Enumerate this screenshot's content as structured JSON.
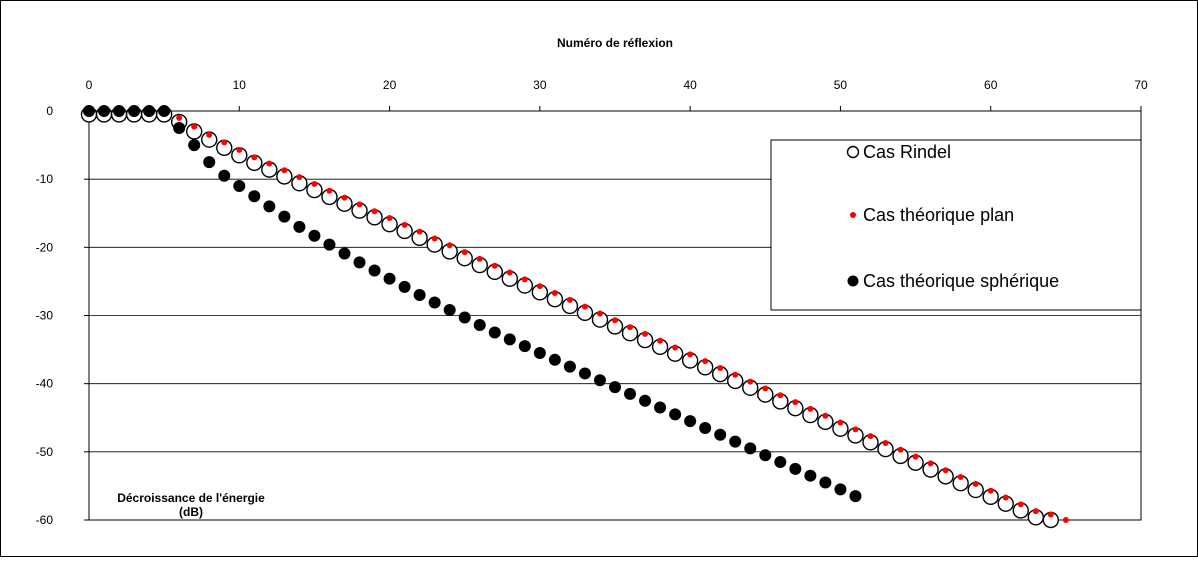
{
  "chart_data": {
    "type": "scatter",
    "title": "",
    "xlabel": "Numéro de réflexion",
    "ylabel_lines": [
      "Décroissance de l'énergie",
      "(dB)"
    ],
    "xlim": [
      0,
      70
    ],
    "ylim": [
      -60,
      0
    ],
    "x_ticks": [
      0,
      10,
      20,
      30,
      40,
      50,
      60,
      70
    ],
    "y_ticks": [
      0,
      -10,
      -20,
      -30,
      -40,
      -50,
      -60
    ],
    "x_axis_position": "top",
    "grid": "horizontal",
    "legend_position": "top-right",
    "series": [
      {
        "name": "Cas Rindel",
        "marker": "open-circle-large",
        "x": [
          0,
          1,
          2,
          3,
          4,
          5,
          6,
          7,
          8,
          9,
          10,
          11,
          12,
          13,
          14,
          15,
          16,
          17,
          18,
          19,
          20,
          21,
          22,
          23,
          24,
          25,
          26,
          27,
          28,
          29,
          30,
          31,
          32,
          33,
          34,
          35,
          36,
          37,
          38,
          39,
          40,
          41,
          42,
          43,
          44,
          45,
          46,
          47,
          48,
          49,
          50,
          51,
          52,
          53,
          54,
          55,
          56,
          57,
          58,
          59,
          60,
          61,
          62,
          63,
          64
        ],
        "y": [
          -0.5,
          -0.5,
          -0.5,
          -0.5,
          -0.5,
          -0.5,
          -1.6,
          -3.0,
          -4.2,
          -5.4,
          -6.5,
          -7.6,
          -8.6,
          -9.6,
          -10.6,
          -11.6,
          -12.6,
          -13.6,
          -14.6,
          -15.6,
          -16.6,
          -17.6,
          -18.6,
          -19.6,
          -20.6,
          -21.6,
          -22.6,
          -23.6,
          -24.6,
          -25.6,
          -26.6,
          -27.6,
          -28.6,
          -29.6,
          -30.6,
          -31.6,
          -32.6,
          -33.6,
          -34.6,
          -35.6,
          -36.6,
          -37.6,
          -38.6,
          -39.6,
          -40.6,
          -41.6,
          -42.6,
          -43.6,
          -44.6,
          -45.6,
          -46.6,
          -47.6,
          -48.6,
          -49.6,
          -50.6,
          -51.6,
          -52.6,
          -53.6,
          -54.6,
          -55.6,
          -56.6,
          -57.6,
          -58.6,
          -59.6,
          -60.0
        ]
      },
      {
        "name": "Cas théorique plan",
        "marker": "small-red-dot",
        "color": "#ff0000",
        "x": [
          6,
          7,
          8,
          9,
          10,
          11,
          12,
          13,
          14,
          15,
          16,
          17,
          18,
          19,
          20,
          21,
          22,
          23,
          24,
          25,
          26,
          27,
          28,
          29,
          30,
          31,
          32,
          33,
          34,
          35,
          36,
          37,
          38,
          39,
          40,
          41,
          42,
          43,
          44,
          45,
          46,
          47,
          48,
          49,
          50,
          51,
          52,
          53,
          54,
          55,
          56,
          57,
          58,
          59,
          60,
          61,
          62,
          63,
          64,
          65
        ],
        "y": [
          -1.0,
          -2.3,
          -3.5,
          -4.6,
          -5.7,
          -6.8,
          -7.7,
          -8.7,
          -9.7,
          -10.7,
          -11.7,
          -12.7,
          -13.7,
          -14.7,
          -15.7,
          -16.7,
          -17.7,
          -18.7,
          -19.7,
          -20.7,
          -21.7,
          -22.7,
          -23.7,
          -24.7,
          -25.7,
          -26.7,
          -27.7,
          -28.7,
          -29.7,
          -30.7,
          -31.7,
          -32.7,
          -33.7,
          -34.7,
          -35.7,
          -36.7,
          -37.7,
          -38.7,
          -39.7,
          -40.7,
          -41.7,
          -42.7,
          -43.7,
          -44.7,
          -45.7,
          -46.7,
          -47.7,
          -48.7,
          -49.7,
          -50.7,
          -51.7,
          -52.7,
          -53.7,
          -54.7,
          -55.7,
          -56.7,
          -57.7,
          -58.7,
          -59.2,
          -60.0
        ]
      },
      {
        "name": "Cas théorique sphérique",
        "marker": "filled-circle-black",
        "color": "#000000",
        "x": [
          0,
          1,
          2,
          3,
          4,
          5,
          6,
          7,
          8,
          9,
          10,
          11,
          12,
          13,
          14,
          15,
          16,
          17,
          18,
          19,
          20,
          21,
          22,
          23,
          24,
          25,
          26,
          27,
          28,
          29,
          30,
          31,
          32,
          33,
          34,
          35,
          36,
          37,
          38,
          39,
          40,
          41,
          42,
          43,
          44,
          45,
          46,
          47,
          48,
          49,
          50,
          51
        ],
        "y": [
          0,
          0,
          0,
          0,
          0,
          0,
          -2.5,
          -5.0,
          -7.5,
          -9.5,
          -11.0,
          -12.5,
          -14.0,
          -15.5,
          -17.0,
          -18.3,
          -19.6,
          -20.9,
          -22.2,
          -23.4,
          -24.6,
          -25.8,
          -27.0,
          -28.1,
          -29.2,
          -30.3,
          -31.4,
          -32.5,
          -33.5,
          -34.5,
          -35.5,
          -36.5,
          -37.5,
          -38.5,
          -39.5,
          -40.5,
          -41.5,
          -42.5,
          -43.5,
          -44.5,
          -45.5,
          -46.5,
          -47.5,
          -48.5,
          -49.5,
          -50.5,
          -51.5,
          -52.5,
          -53.5,
          -54.5,
          -55.5,
          -56.5
        ]
      }
    ]
  }
}
